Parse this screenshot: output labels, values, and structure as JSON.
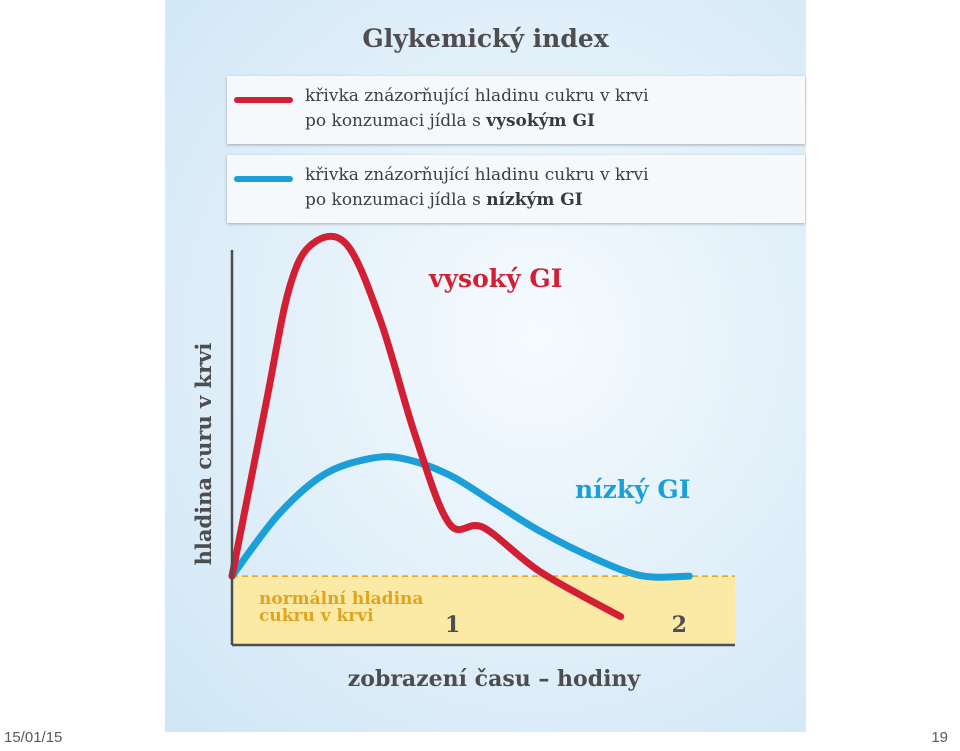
{
  "slide": {
    "date": "15/01/15",
    "number": "19"
  },
  "chart_data": {
    "type": "line",
    "title": "Glykemický index",
    "xlabel": "zobrazení času – hodiny",
    "ylabel": "hladina curu v krvi",
    "x_ticks": [
      {
        "value": 1,
        "label": "1"
      },
      {
        "value": 2,
        "label": "2"
      }
    ],
    "xlim": [
      0,
      2.2
    ],
    "ylim": [
      0,
      1
    ],
    "grid": false,
    "legend": [
      {
        "line1": "křivka znázorňující hladinu cukru v krvi",
        "line2_prefix": "po konzumaci jídla s ",
        "line2_bold": "vysokým GI",
        "color": "#d21f33"
      },
      {
        "line1": "křivka znázorňující hladinu cukru v krvi",
        "line2_prefix": "po konzumaci jídla s ",
        "line2_bold": "nízkým GI",
        "color": "#1a9fd8"
      }
    ],
    "normal_band": {
      "label_line1": "normální hladina",
      "label_line2": "cukru v krvi",
      "y": 0.17,
      "color": "#fbeaa6",
      "text_color": "#e0a420"
    },
    "series": [
      {
        "label": "vysoký GI",
        "color": "#d21f33",
        "x": [
          0,
          0.15,
          0.25,
          0.35,
          0.5,
          0.65,
          0.8,
          0.95,
          1.1,
          1.35,
          1.7
        ],
        "y": [
          0.17,
          0.6,
          0.88,
          0.99,
          0.99,
          0.8,
          0.52,
          0.3,
          0.29,
          0.18,
          0.07
        ]
      },
      {
        "label": "nízký GI",
        "color": "#1a9fd8",
        "x": [
          0,
          0.2,
          0.4,
          0.6,
          0.75,
          0.95,
          1.15,
          1.35,
          1.6,
          1.8,
          2.0
        ],
        "y": [
          0.17,
          0.32,
          0.42,
          0.46,
          0.46,
          0.42,
          0.35,
          0.28,
          0.21,
          0.17,
          0.17
        ]
      }
    ]
  }
}
